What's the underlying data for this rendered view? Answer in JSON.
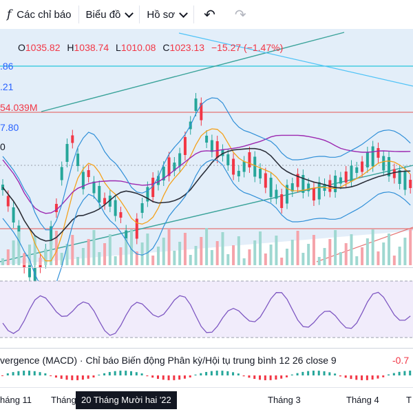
{
  "toolbar": {
    "indicators_label": "Các chỉ báo",
    "chart_type_label": "Biểu đồ",
    "profile_label": "Hồ sơ",
    "fx_glyph": "f",
    "undo_glyph": "↶",
    "redo_glyph": "↷"
  },
  "ohlc": {
    "o_key": "O",
    "o_val": "1035.82",
    "h_key": "H",
    "h_val": "1038.74",
    "l_key": "L",
    "l_val": "1010.08",
    "c_key": "C",
    "c_val": "1023.13",
    "change": "−15.27 (−1.47%)"
  },
  "left_axis": [
    ".86",
    ".21",
    "54.039M",
    "7.80",
    "0"
  ],
  "macd": {
    "title": "vergence (MACD) · Chỉ báo Biến động Phân kỳ/Hội tụ trung bình 12 26 close 9",
    "value": "-0.7"
  },
  "time_axis": {
    "labels": [
      "háng 11",
      "Tháng",
      "Tháng 3",
      "Tháng 4",
      "T"
    ],
    "cursor_label": "20 Tháng Mười hai '22"
  },
  "colors": {
    "up": "#26a69a",
    "down": "#f23645",
    "bb": "#2f8fd8",
    "ma_orange": "#f4a11b",
    "ma_purple": "#9c27b0",
    "ma_black": "#2a2e39",
    "rsi": "#7e57c2",
    "teal": "#3aa39a"
  }
}
